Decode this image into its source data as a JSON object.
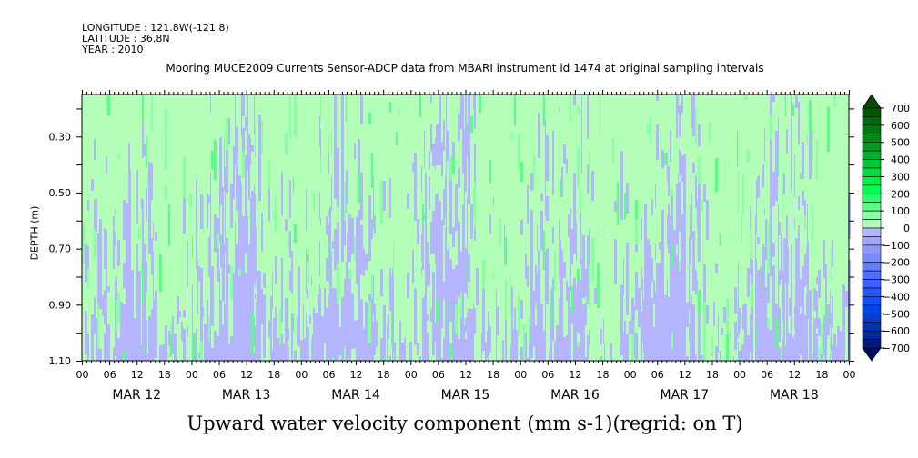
{
  "header": {
    "longitude": "LONGITUDE : 121.8W(-121.8)",
    "latitude": "LATITUDE : 36.8N",
    "year": "YEAR : 2010",
    "title": "Mooring MUCE2009 Currents Sensor-ADCP data from MBARI instrument id 1474 at original sampling intervals"
  },
  "chart_data": {
    "type": "heatmap",
    "title": "Mooring MUCE2009 Currents Sensor-ADCP data from MBARI instrument id 1474 at original sampling intervals",
    "xlabel": "",
    "ylabel": "DEPTH (m)",
    "variable_label": "Upward water velocity component (mm s-1)(regrid: on T)",
    "x_range_hours": [
      0,
      168
    ],
    "x_day_labels": [
      "MAR 12",
      "MAR 13",
      "MAR 14",
      "MAR 15",
      "MAR 16",
      "MAR 17",
      "MAR 18"
    ],
    "x_hour_labels": [
      "00",
      "06",
      "12",
      "18"
    ],
    "y_range": [
      0.15,
      1.1
    ],
    "y_reversed": true,
    "y_ticks": [
      "0.30",
      "0.50",
      "0.70",
      "0.90",
      "1.10"
    ],
    "y_tick_values": [
      0.3,
      0.5,
      0.7,
      0.9,
      1.1
    ],
    "grid_depths": [
      0.2,
      0.3,
      0.4,
      0.5,
      0.6,
      0.7,
      0.8,
      0.9,
      1.0,
      1.1
    ],
    "grid_hours_step": 6,
    "values_mean_mm_s": [
      [
        30,
        20,
        10,
        30,
        30,
        10,
        0,
        30,
        30,
        10,
        10,
        30,
        30,
        0,
        -10,
        30,
        30,
        10,
        10,
        30,
        30,
        20,
        0,
        30,
        30,
        10,
        10,
        30
      ],
      [
        30,
        10,
        0,
        30,
        30,
        0,
        -10,
        30,
        30,
        10,
        0,
        30,
        30,
        -10,
        -20,
        30,
        30,
        0,
        10,
        30,
        30,
        10,
        -10,
        30,
        30,
        10,
        0,
        30
      ],
      [
        30,
        10,
        0,
        30,
        20,
        0,
        -10,
        20,
        30,
        0,
        0,
        30,
        20,
        -10,
        -20,
        30,
        30,
        0,
        0,
        30,
        20,
        0,
        -10,
        30,
        30,
        0,
        0,
        30
      ],
      [
        30,
        0,
        0,
        30,
        20,
        -10,
        -10,
        20,
        20,
        0,
        0,
        20,
        20,
        -10,
        -10,
        30,
        20,
        0,
        0,
        30,
        20,
        0,
        -10,
        20,
        30,
        0,
        0,
        30
      ],
      [
        20,
        0,
        -10,
        20,
        20,
        -10,
        -10,
        20,
        20,
        0,
        -10,
        20,
        20,
        -10,
        -10,
        20,
        20,
        0,
        -10,
        20,
        20,
        -10,
        -20,
        20,
        20,
        0,
        0,
        20
      ],
      [
        20,
        -10,
        -10,
        20,
        20,
        -10,
        -20,
        20,
        20,
        -10,
        -10,
        20,
        20,
        -20,
        -10,
        20,
        20,
        -10,
        -20,
        20,
        20,
        -20,
        -20,
        20,
        20,
        -10,
        -10,
        20
      ],
      [
        10,
        -10,
        -20,
        20,
        10,
        -20,
        -20,
        10,
        10,
        -10,
        -20,
        10,
        10,
        -20,
        -20,
        10,
        10,
        -10,
        -20,
        10,
        10,
        -20,
        -30,
        10,
        10,
        -10,
        -20,
        10
      ],
      [
        10,
        -20,
        -20,
        10,
        0,
        -20,
        -30,
        10,
        0,
        -20,
        -20,
        10,
        0,
        -30,
        -20,
        10,
        0,
        -20,
        -30,
        10,
        0,
        -30,
        -30,
        10,
        0,
        -20,
        -20,
        0
      ],
      [
        0,
        -30,
        -30,
        0,
        -10,
        -30,
        -30,
        0,
        -20,
        -30,
        -30,
        0,
        -10,
        -30,
        -30,
        0,
        -10,
        -30,
        -30,
        0,
        -10,
        -30,
        -40,
        0,
        -10,
        -30,
        -30,
        -10
      ],
      [
        0,
        -30,
        -40,
        0,
        -10,
        -40,
        -30,
        0,
        -20,
        -40,
        -30,
        0,
        -10,
        -30,
        -40,
        0,
        -10,
        -30,
        -40,
        0,
        -10,
        -40,
        -40,
        0,
        -10,
        -30,
        -40,
        -20
      ]
    ],
    "colorbar": {
      "levels": [
        700,
        600,
        500,
        400,
        300,
        200,
        100,
        0,
        -100,
        -200,
        -300,
        -400,
        -500,
        -600,
        -700
      ],
      "labels": [
        "700",
        "600",
        "500",
        "400",
        "300",
        "200",
        "100",
        "0",
        "-100",
        "-200",
        "-300",
        "-400",
        "-500",
        "-600",
        "-700"
      ],
      "step": 50,
      "top_arrow_color": "#004a00",
      "bottom_arrow_color": "#000a5a",
      "band_colors": [
        "#005800",
        "#006808",
        "#007810",
        "#008a18",
        "#009c22",
        "#00b02c",
        "#00c836",
        "#00dc40",
        "#00f04a",
        "#00ff50",
        "#28ff6a",
        "#58ff84",
        "#88ffa0",
        "#b4ffb8",
        "#b4b4ff",
        "#a0a6ff",
        "#8c98ff",
        "#788aff",
        "#647cff",
        "#506eff",
        "#3c62ff",
        "#2458ff",
        "#0c50ff",
        "#0048e6",
        "#003ecc",
        "#0034b4",
        "#00289a",
        "#001c80"
      ]
    }
  },
  "bottom_title": "Upward water velocity component (mm s-1)(regrid: on T)",
  "axis": {
    "ylabel": "DEPTH (m)"
  }
}
